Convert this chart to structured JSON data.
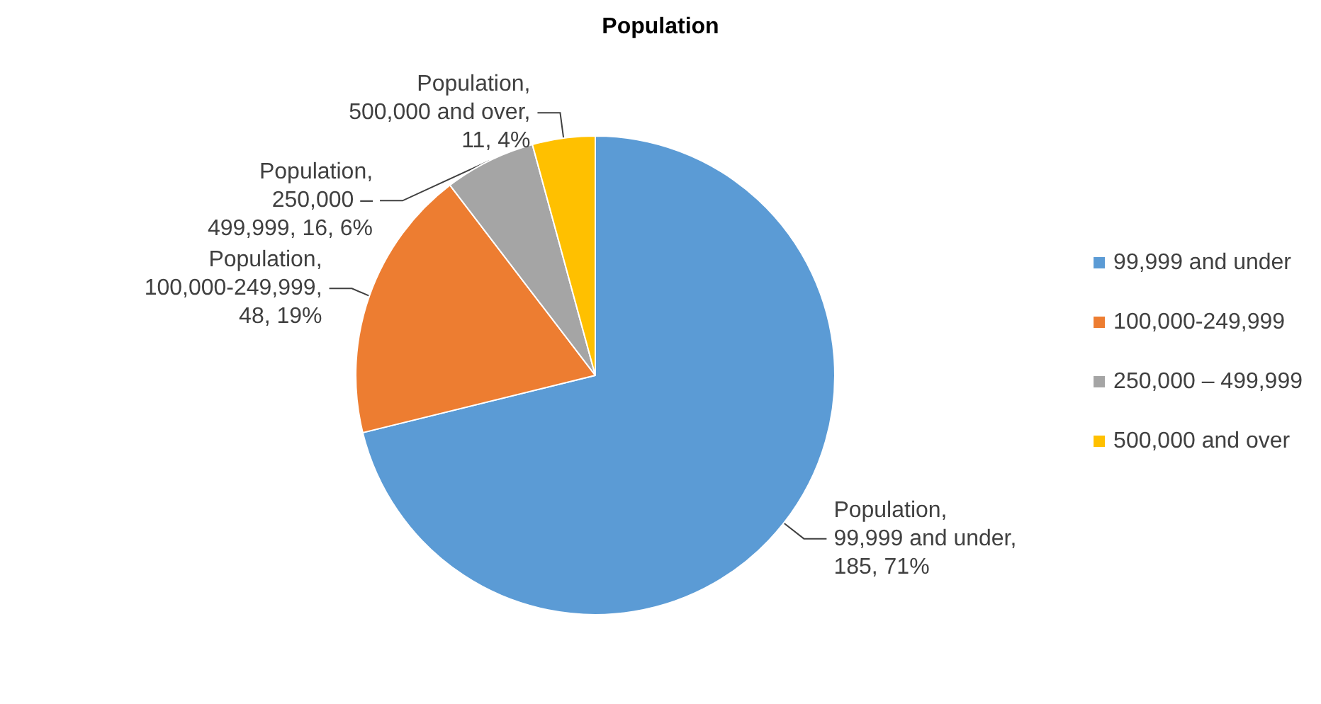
{
  "chart_data": {
    "type": "pie",
    "title": "Population",
    "categories": [
      "99,999 and under",
      "100,000-249,999",
      "250,000 – 499,999",
      "500,000 and over"
    ],
    "values": [
      185,
      48,
      16,
      11
    ],
    "colors": [
      "#5b9bd5",
      "#ed7d31",
      "#a5a5a5",
      "#ffc000"
    ],
    "value_labels": [
      "Population, 99,999 and under, 185, 71%",
      "Population, 100,000-249,999, 48, 19%",
      "Population, 250,000 – 499,999, 16, 6%",
      "Population, 500,000 and over, 11, 4%"
    ],
    "legend": "right"
  }
}
